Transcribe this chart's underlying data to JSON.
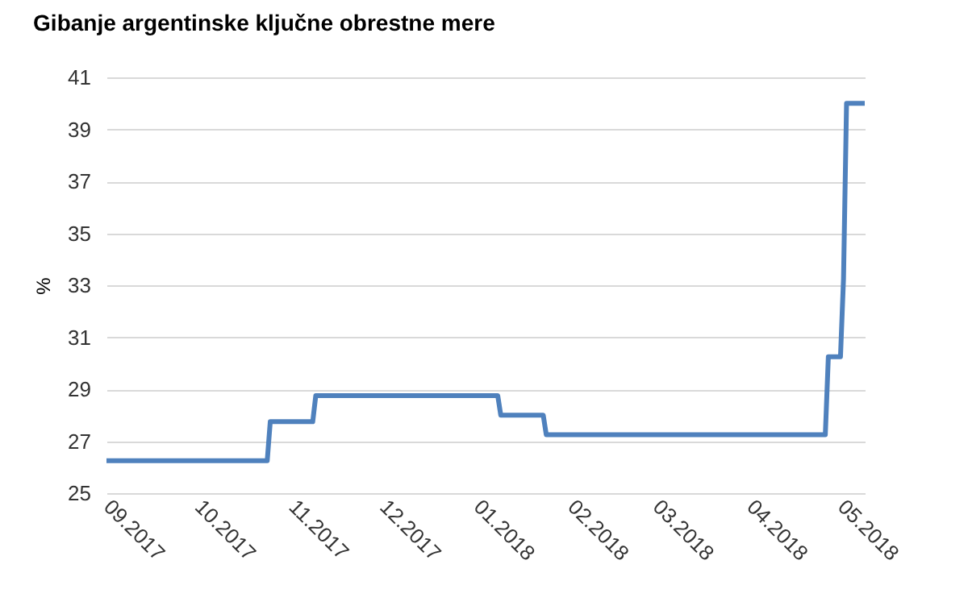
{
  "chart_data": {
    "type": "line",
    "title": "Gibanje argentinske ključne obrestne mere",
    "ylabel": "%",
    "x": [
      "2017-09-01",
      "2017-10-24",
      "2017-10-25",
      "2017-11-08",
      "2017-11-09",
      "2018-01-08",
      "2018-01-09",
      "2018-01-23",
      "2018-01-24",
      "2018-04-26",
      "2018-04-27",
      "2018-05-01",
      "2018-05-02",
      "2018-05-03",
      "2018-05-09"
    ],
    "series": [
      {
        "color": "#4f81bd",
        "values": [
          26.25,
          26.25,
          27.75,
          27.75,
          28.75,
          28.75,
          28,
          28,
          27.25,
          27.25,
          30.25,
          30.25,
          33.25,
          40,
          40
        ]
      }
    ],
    "xlim": [
      "2017-09-01",
      "2018-05-09"
    ],
    "xticks": [
      {
        "value": "2017-09-01",
        "label": "09.2017"
      },
      {
        "value": "2017-10-01",
        "label": "10.2017"
      },
      {
        "value": "2017-11-01",
        "label": "11.2017"
      },
      {
        "value": "2017-12-01",
        "label": "12.2017"
      },
      {
        "value": "2018-01-01",
        "label": "01.2018"
      },
      {
        "value": "2018-02-01",
        "label": "02.2018"
      },
      {
        "value": "2018-03-01",
        "label": "03.2018"
      },
      {
        "value": "2018-04-01",
        "label": "04.2018"
      },
      {
        "value": "2018-05-01",
        "label": "05.2018"
      }
    ],
    "ylim": [
      25,
      41
    ],
    "yticks": [
      25,
      27,
      29,
      31,
      33,
      35,
      37,
      39,
      41
    ],
    "grid": "y",
    "marker": "none",
    "line_style": "solid"
  }
}
